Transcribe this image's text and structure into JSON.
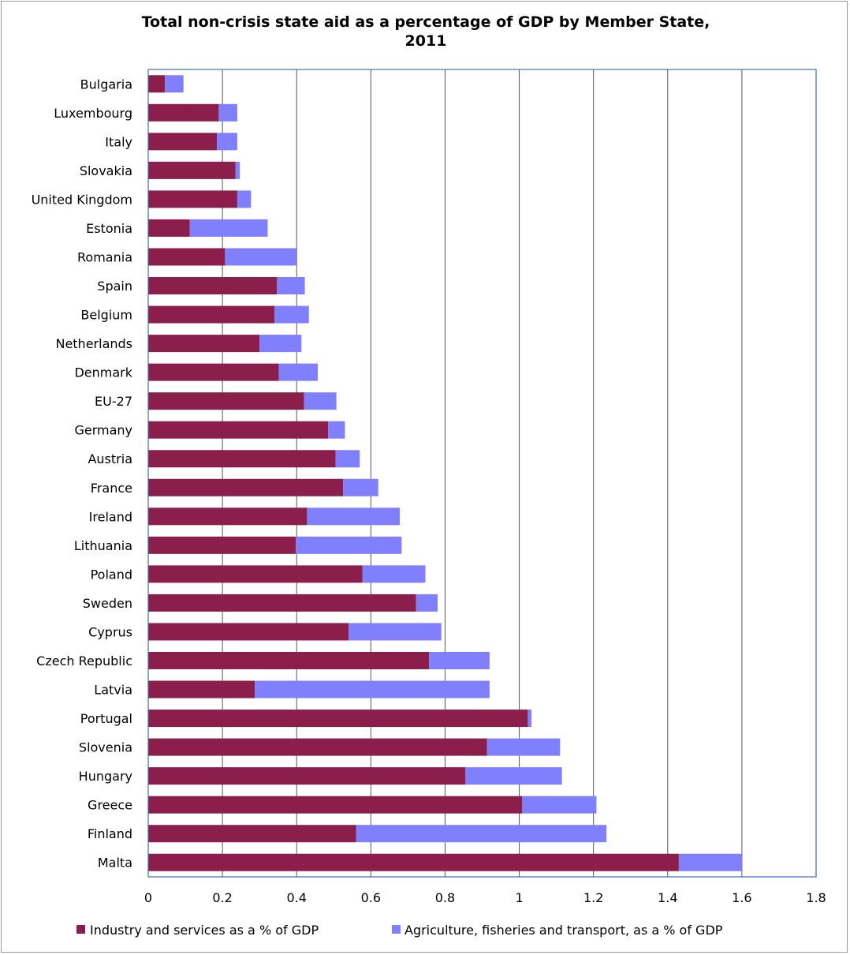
{
  "chart_data": {
    "type": "bar",
    "orientation": "horizontal",
    "stacked": true,
    "title": "Total non-crisis state aid as a percentage of GDP by Member State, 2011",
    "title_lines": [
      "Total non-crisis state aid as a percentage of GDP by Member State,",
      "2011"
    ],
    "xlabel": "",
    "ylabel": "",
    "xlim": [
      0,
      1.8
    ],
    "x_ticks": [
      "0",
      "0.2",
      "0.4",
      "0.6",
      "0.8",
      "1",
      "1.2",
      "1.4",
      "1.6",
      "1.8"
    ],
    "x_tick_values": [
      0,
      0.2,
      0.4,
      0.6,
      0.8,
      1.0,
      1.2,
      1.4,
      1.6,
      1.8
    ],
    "grid": "vertical",
    "legend_position": "bottom",
    "categories": [
      "Bulgaria",
      "Luxembourg",
      "Italy",
      "Slovakia",
      "United Kingdom",
      "Estonia",
      "Romania",
      "Spain",
      "Belgium",
      "Netherlands",
      "Denmark",
      "EU-27",
      "Germany",
      "Austria",
      "France",
      "Ireland",
      "Lithuania",
      "Poland",
      "Sweden",
      "Cyprus",
      "Czech Republic",
      "Latvia",
      "Portugal",
      "Slovenia",
      "Hungary",
      "Greece",
      "Finland",
      "Malta"
    ],
    "series": [
      {
        "name": "Industry and services as a % of GDP",
        "color": "#8b1e4b",
        "values": [
          0.045,
          0.19,
          0.185,
          0.235,
          0.24,
          0.112,
          0.207,
          0.347,
          0.34,
          0.3,
          0.352,
          0.42,
          0.485,
          0.505,
          0.525,
          0.428,
          0.398,
          0.577,
          0.722,
          0.54,
          0.757,
          0.287,
          1.023,
          0.913,
          0.855,
          1.008,
          0.56,
          1.43
        ]
      },
      {
        "name": "Agriculture, fisheries and transport, as a % of GDP",
        "color": "#8080ff",
        "values": [
          0.05,
          0.05,
          0.055,
          0.012,
          0.037,
          0.21,
          0.193,
          0.075,
          0.093,
          0.113,
          0.105,
          0.087,
          0.045,
          0.065,
          0.095,
          0.25,
          0.285,
          0.17,
          0.058,
          0.25,
          0.163,
          0.633,
          0.01,
          0.197,
          0.26,
          0.2,
          0.675,
          0.17
        ]
      }
    ]
  }
}
